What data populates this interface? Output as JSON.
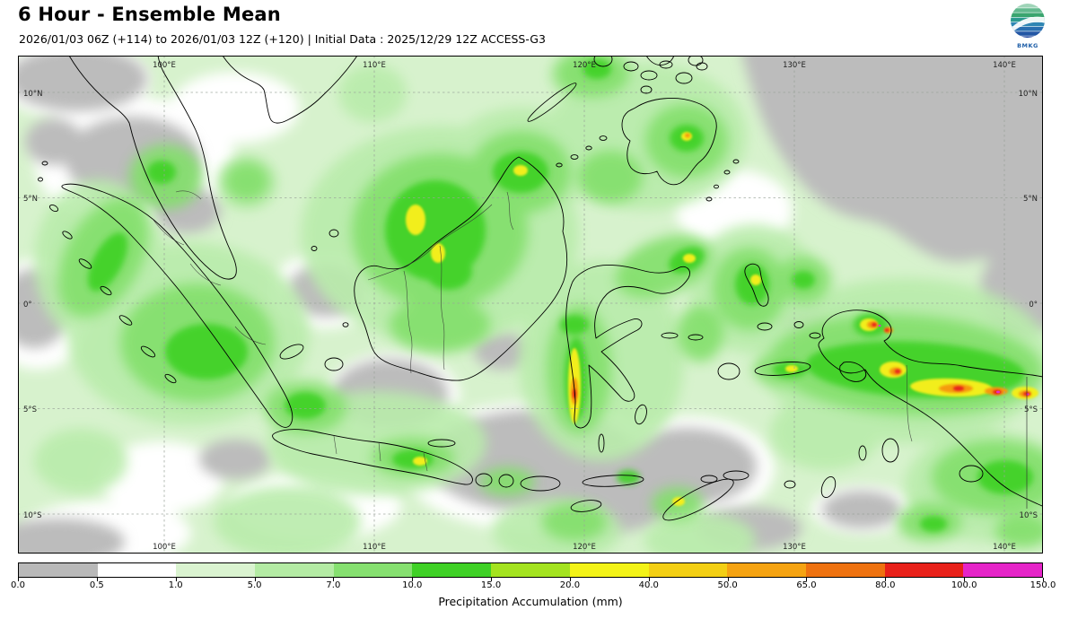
{
  "header": {
    "title": "6 Hour - Ensemble Mean",
    "subtitle": "2026/01/03 06Z (+114) to 2026/01/03 12Z (+120) | Initial Data : 2025/12/29 12Z ACCESS-G3",
    "logo_text": "BMKG"
  },
  "map": {
    "lon_labels": [
      "100°E",
      "110°E",
      "120°E",
      "130°E",
      "140°E"
    ],
    "lat_labels": [
      "10°N",
      "5°N",
      "0°",
      "5°S",
      "10°S"
    ]
  },
  "colorbar": {
    "label": "Precipitation Accumulation (mm)",
    "ticks": [
      "0.0",
      "0.5",
      "1.0",
      "5.0",
      "7.0",
      "10.0",
      "15.0",
      "20.0",
      "40.0",
      "50.0",
      "65.0",
      "80.0",
      "100.0",
      "150.0"
    ],
    "colors": [
      "#b9b9b9",
      "#ffffff",
      "#daf3d0",
      "#b4eba4",
      "#86e070",
      "#3fd126",
      "#a4e320",
      "#f3f318",
      "#f3cf14",
      "#f5a312",
      "#ee7210",
      "#e8211a",
      "#e525c8"
    ]
  },
  "chart_data": {
    "type": "heatmap",
    "title": "6 Hour - Ensemble Mean",
    "subtitle": "2026/01/03 06Z (+114) to 2026/01/03 12Z (+120) | Initial Data : 2025/12/29 12Z ACCESS-G3",
    "model": "ACCESS-G3",
    "initial_time": "2025/12/29 12Z",
    "valid_from": "2026/01/03 06Z (+114)",
    "valid_to": "2026/01/03 12Z (+120)",
    "variable": "Precipitation Accumulation (mm)",
    "x_axis": {
      "ticks": [
        "100°E",
        "110°E",
        "120°E",
        "130°E",
        "140°E"
      ]
    },
    "y_axis": {
      "ticks": [
        "10°N",
        "5°N",
        "0°",
        "5°S",
        "10°S"
      ]
    },
    "levels_mm": [
      0.0,
      0.5,
      1.0,
      5.0,
      7.0,
      10.0,
      15.0,
      20.0,
      40.0,
      50.0,
      65.0,
      80.0,
      100.0,
      150.0
    ],
    "level_colors": [
      "#b9b9b9",
      "#ffffff",
      "#daf3d0",
      "#b4eba4",
      "#86e070",
      "#3fd126",
      "#a4e320",
      "#f3f318",
      "#f3cf14",
      "#f5a312",
      "#ee7210",
      "#e8211a",
      "#e525c8"
    ],
    "readings": [
      {
        "area": "Central Papua along the central range",
        "value_mm": "20-150, local maxima above 100"
      },
      {
        "area": "Bird's Head Peninsula, Papua",
        "value_mm": "20-100"
      },
      {
        "area": "West coast of South Sulawesi",
        "value_mm": "20-80"
      },
      {
        "area": "Central / West Kalimantan",
        "value_mm": "10-40"
      },
      {
        "area": "NE Kalimantan / Sabah",
        "value_mm": "10-20"
      },
      {
        "area": "Southern Sumatra",
        "value_mm": "5-15"
      },
      {
        "area": "West and Central Java",
        "value_mm": "5-20"
      },
      {
        "area": "Philippine Sea (NE), Java/Flores Seas, Banda Sea, Andaman Sea",
        "value_mm": "below 0.5 (dry, gray)"
      }
    ]
  }
}
